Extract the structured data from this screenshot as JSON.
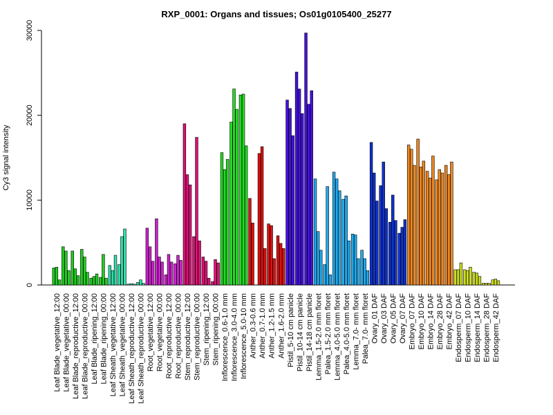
{
  "chart_data": {
    "type": "bar",
    "title": "RXP_0001: Organs and tissues; Os01g0105400_25277",
    "ylabel": "Cy3 signal intensity",
    "xlabel": "",
    "ylim": [
      0,
      30000
    ],
    "yticks": [
      0,
      10000,
      20000,
      30000
    ],
    "grid": false,
    "groups": [
      {
        "label": "Leaf Blade_vegetative_12:00",
        "color": "#22cc22",
        "values": [
          2000,
          2100,
          600
        ]
      },
      {
        "label": "Leaf Blade_vegetative_00:00",
        "color": "#22cc22",
        "values": [
          4500,
          4000,
          1700
        ]
      },
      {
        "label": "Leaf Blade_reproductive_12:00",
        "color": "#22cc22",
        "values": [
          4000,
          1900,
          1100
        ]
      },
      {
        "label": "Leaf Blade_reproductive_00:00",
        "color": "#22cc22",
        "values": [
          4200,
          3300,
          1500
        ]
      },
      {
        "label": "Leaf Blade_ripening_12:00",
        "color": "#22cc22",
        "values": [
          800,
          1000,
          1300
        ]
      },
      {
        "label": "Leaf Blade_ripening_00:00",
        "color": "#22cc22",
        "values": [
          900,
          3600,
          800
        ]
      },
      {
        "label": "Leaf Sheath_vegetative_12:00",
        "color": "#33ddaa",
        "values": [
          2300,
          1700,
          3500
        ]
      },
      {
        "label": "Leaf Sheath_vegetative_00:00",
        "color": "#33ddaa",
        "values": [
          2400,
          5700,
          6600
        ]
      },
      {
        "label": "Leaf Sheath_reproductive_12:00",
        "color": "#33ddaa",
        "values": [
          100,
          150,
          100
        ]
      },
      {
        "label": "Leaf Sheath_reproductive_00:00",
        "color": "#33ddaa",
        "values": [
          300,
          600,
          200
        ]
      },
      {
        "label": "Root_vegetative_12:00",
        "color": "#cc22cc",
        "values": [
          6700,
          4500,
          2800
        ]
      },
      {
        "label": "Root_vegetative_00:00",
        "color": "#cc22cc",
        "values": [
          7800,
          3300,
          2700
        ]
      },
      {
        "label": "Root_reproductive_12:00",
        "color": "#cc22cc",
        "values": [
          1200,
          3600,
          2700
        ]
      },
      {
        "label": "Root_reproductive_00:00",
        "color": "#cc22cc",
        "values": [
          2500,
          3500,
          2900
        ]
      },
      {
        "label": "Stem_reproductive_12:00",
        "color": "#dd1177",
        "values": [
          19000,
          13000,
          11800
        ]
      },
      {
        "label": "Stem_reproductive_00:00",
        "color": "#dd1177",
        "values": [
          5700,
          17400,
          5200
        ]
      },
      {
        "label": "Stem_ripening_12:00",
        "color": "#dd1177",
        "values": [
          3300,
          2800,
          800
        ]
      },
      {
        "label": "Stem_ripening_00:00",
        "color": "#dd1177",
        "values": [
          400,
          3000,
          2600
        ]
      },
      {
        "label": "Inflorescence_0.6-1.0 mm",
        "color": "#22dd22",
        "values": [
          15600,
          13600,
          14800
        ]
      },
      {
        "label": "Inflorescence_3.0-4.0 mm",
        "color": "#22dd22",
        "values": [
          19200,
          23100,
          20700
        ]
      },
      {
        "label": "Inflorescence_5.0-10 mm",
        "color": "#22dd22",
        "values": [
          22400,
          22500,
          16400
        ]
      },
      {
        "label": "Anther_0.3-0.6 mm",
        "color": "#dd1111",
        "values": [
          10200,
          7300
        ]
      },
      {
        "label": "Anther_0.7-1.0 mm",
        "color": "#dd1111",
        "values": [
          15500,
          16300,
          4300
        ]
      },
      {
        "label": "Anther_1.2-1.5 mm",
        "color": "#dd1111",
        "values": [
          7200,
          7000,
          3100
        ]
      },
      {
        "label": "Anther_1.6-2.0 mm",
        "color": "#dd1111",
        "values": [
          5800,
          4900,
          4300
        ]
      },
      {
        "label": "Pistil_5-10 cm panicle",
        "color": "#4411dd",
        "values": [
          21800,
          20800,
          17600
        ]
      },
      {
        "label": "Pistil_10-14 cm panicle",
        "color": "#4411dd",
        "values": [
          25100,
          23100,
          20200
        ]
      },
      {
        "label": "Pistil_14-18 cm panicle",
        "color": "#4411dd",
        "values": [
          29700,
          21300,
          22900
        ]
      },
      {
        "label": "Lemma_1.5-2.0 mm floret",
        "color": "#22aaee",
        "values": [
          12500,
          6300,
          4100
        ]
      },
      {
        "label": "Palea_1.5-2.0 mm floret",
        "color": "#22aaee",
        "values": [
          2400,
          11600,
          1200
        ]
      },
      {
        "label": "Lemma_4.0-5.0 mm floret",
        "color": "#22aaee",
        "values": [
          13300,
          12500,
          11100
        ]
      },
      {
        "label": "Palea_4.0-5.0 mm floret",
        "color": "#22aaee",
        "values": [
          10100,
          10500,
          5200
        ]
      },
      {
        "label": "Lemma_7.0- mm floret",
        "color": "#22aaee",
        "values": [
          6000,
          5900,
          3100
        ]
      },
      {
        "label": "Palea_7.0- mm floret",
        "color": "#22aaee",
        "values": [
          4100,
          3100,
          1700
        ]
      },
      {
        "label": "Ovary_01 DAF",
        "color": "#1133cc",
        "values": [
          16800,
          13200,
          9900
        ]
      },
      {
        "label": "Ovary_03 DAF",
        "color": "#1133cc",
        "values": [
          11700,
          14500,
          9000
        ]
      },
      {
        "label": "Ovary_05 DAF",
        "color": "#1133cc",
        "values": [
          7400,
          10600,
          7600
        ]
      },
      {
        "label": "Ovary_07 DAF",
        "color": "#1133cc",
        "values": [
          6100,
          6800,
          7700
        ]
      },
      {
        "label": "Embryo_07 DAF",
        "color": "#ee8822",
        "values": [
          16500,
          16000,
          14100
        ]
      },
      {
        "label": "Embryo_10 DAF",
        "color": "#ee8822",
        "values": [
          17200,
          13900,
          14600
        ]
      },
      {
        "label": "Embryo_14 DAF",
        "color": "#ee8822",
        "values": [
          13400,
          12600,
          15200
        ]
      },
      {
        "label": "Embryo_28 DAF",
        "color": "#ee8822",
        "values": [
          12400,
          13600,
          13200
        ]
      },
      {
        "label": "Embryo_42 DAF",
        "color": "#ee8822",
        "values": [
          14100,
          13000,
          14500
        ]
      },
      {
        "label": "Endosperm_07 DAF",
        "color": "#ccdd22",
        "values": [
          1800,
          1800,
          2600
        ]
      },
      {
        "label": "Endosperm_10 DAF",
        "color": "#ccdd22",
        "values": [
          1800,
          1700,
          2100
        ]
      },
      {
        "label": "Endosperm_14 DAF",
        "color": "#ccdd22",
        "values": [
          1500,
          1400,
          1000
        ]
      },
      {
        "label": "Endosperm_28 DAF",
        "color": "#ccdd22",
        "values": [
          200,
          200,
          200
        ]
      },
      {
        "label": "Endosperm_42 DAF",
        "color": "#ccdd22",
        "values": [
          600,
          700,
          500
        ]
      }
    ]
  }
}
